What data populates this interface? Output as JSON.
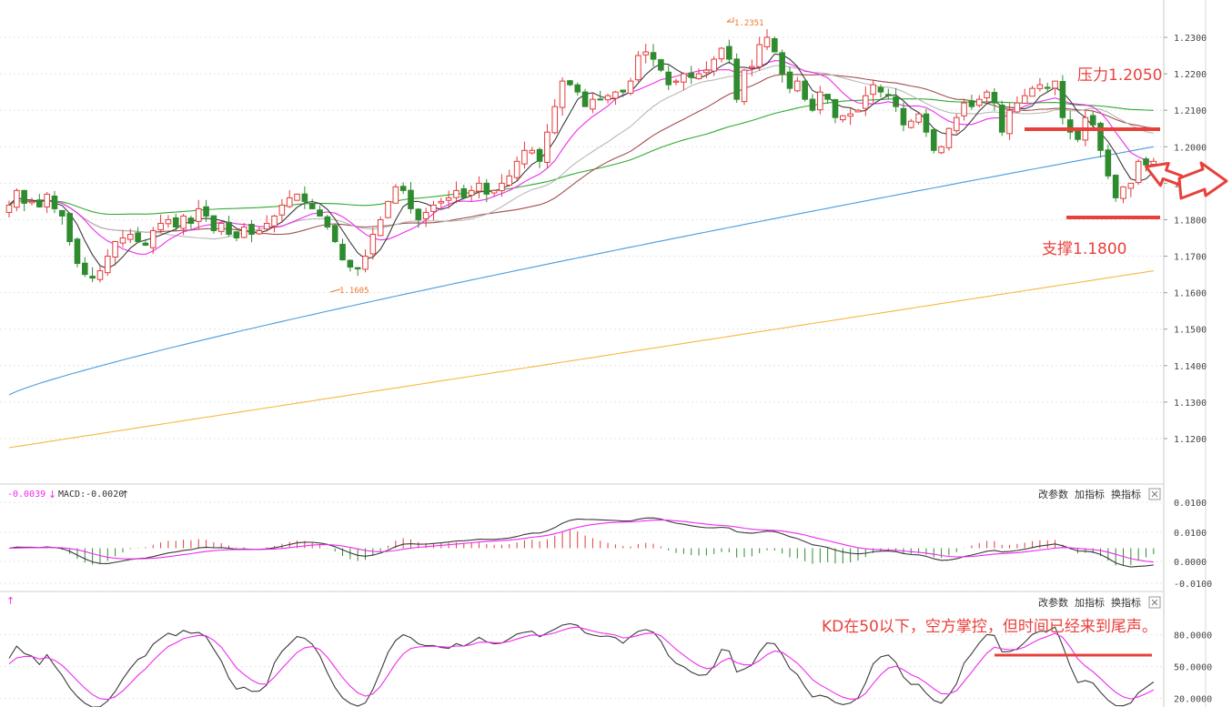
{
  "colors": {
    "up": "#e33b3b",
    "down": "#2e8b2e",
    "ma5": "#3a3a3a",
    "ma10": "#ee2bee",
    "ma20": "#b8b8b8",
    "ma30": "#a24d4d",
    "ma60": "#2faa2f",
    "ma120": "#4a9bdb",
    "ma250": "#f5b942",
    "annotation": "#e8413c",
    "grid": "#e4e4e4"
  },
  "main_panel": {
    "high_label": "1.2351",
    "low_label": "1.1605"
  },
  "annotations": {
    "resistance": "压力1.2050",
    "support": "支撑1.1800",
    "kd_note": "KD在50以下，空方掌控，但时间已经来到尾声。"
  },
  "macd_panel": {
    "dif_text": "-0.0039",
    "macd_text": "MACD:-0.0020",
    "buttons": [
      "改参数",
      "加指标",
      "换指标"
    ],
    "close_icon": "close-icon"
  },
  "kd_panel": {
    "buttons": [
      "改参数",
      "加指标",
      "换指标"
    ],
    "close_icon": "close-icon"
  },
  "chart_data": [
    {
      "type": "candlestick",
      "title": "",
      "ylim": [
        1.1095,
        1.2395
      ],
      "y_ticks": [
        "1.2300",
        "1.2200",
        "1.2100",
        "1.2000",
        "1.1900",
        "1.1800",
        "1.1700",
        "1.1600",
        "1.1500",
        "1.1400",
        "1.1300",
        "1.1200"
      ],
      "y_tick_values": [
        1.23,
        1.22,
        1.21,
        1.2,
        1.19,
        1.18,
        1.17,
        1.16,
        1.15,
        1.14,
        1.13,
        1.12
      ],
      "closes": [
        1.184,
        1.188,
        1.1845,
        1.185,
        1.1835,
        1.187,
        1.183,
        1.181,
        1.174,
        1.168,
        1.165,
        1.164,
        1.166,
        1.17,
        1.174,
        1.175,
        1.176,
        1.174,
        1.173,
        1.177,
        1.179,
        1.18,
        1.178,
        1.181,
        1.179,
        1.183,
        1.181,
        1.177,
        1.179,
        1.176,
        1.175,
        1.178,
        1.176,
        1.177,
        1.179,
        1.181,
        1.184,
        1.186,
        1.187,
        1.185,
        1.183,
        1.181,
        1.178,
        1.174,
        1.169,
        1.167,
        1.1665,
        1.17,
        1.176,
        1.18,
        1.185,
        1.189,
        1.188,
        1.183,
        1.18,
        1.182,
        1.184,
        1.185,
        1.186,
        1.188,
        1.186,
        1.188,
        1.19,
        1.187,
        1.188,
        1.19,
        1.192,
        1.196,
        1.199,
        1.199,
        1.196,
        1.204,
        1.211,
        1.218,
        1.217,
        1.215,
        1.211,
        1.213,
        1.213,
        1.214,
        1.215,
        1.215,
        1.218,
        1.225,
        1.226,
        1.224,
        1.221,
        1.217,
        1.218,
        1.22,
        1.219,
        1.22,
        1.221,
        1.224,
        1.227,
        1.224,
        1.213,
        1.221,
        1.222,
        1.228,
        1.23,
        1.226,
        1.22,
        1.216,
        1.218,
        1.213,
        1.21,
        1.215,
        1.213,
        1.208,
        1.2085,
        1.209,
        1.21,
        1.214,
        1.217,
        1.215,
        1.214,
        1.211,
        1.206,
        1.207,
        1.209,
        1.204,
        1.199,
        1.2,
        1.205,
        1.208,
        1.212,
        1.211,
        1.213,
        1.215,
        1.212,
        1.204,
        1.21,
        1.212,
        1.214,
        1.216,
        1.217,
        1.216,
        1.218,
        1.208,
        1.204,
        1.202,
        1.208,
        1.206,
        1.199,
        1.192,
        1.186,
        1.189,
        1.19,
        1.196,
        1.195,
        1.196
      ],
      "series": [
        {
          "name": "MA5",
          "values": []
        },
        {
          "name": "MA10",
          "values": []
        },
        {
          "name": "MA20",
          "values": []
        },
        {
          "name": "MA30",
          "values": []
        },
        {
          "name": "MA60",
          "values": []
        },
        {
          "name": "MA120",
          "values": []
        },
        {
          "name": "MA250",
          "values": []
        }
      ],
      "hlines": [
        {
          "label": "压力1.2050",
          "value": 1.205
        },
        {
          "label": "支撑1.1800",
          "value": 1.18
        }
      ]
    },
    {
      "type": "bar",
      "title": "",
      "ylim": [
        -0.0125,
        0.0125
      ],
      "y_ticks": [
        "0.0100",
        "0.0100",
        "0.0000",
        "-0.0100"
      ],
      "series": [
        {
          "name": "MACD",
          "values": []
        },
        {
          "name": "DIF",
          "values": []
        },
        {
          "name": "DEA",
          "values": []
        }
      ]
    },
    {
      "type": "line",
      "title": "",
      "ylim": [
        12,
        102
      ],
      "y_ticks": [
        "80.0000",
        "50.0000",
        "20.0000"
      ],
      "y_tick_values": [
        80,
        50,
        20
      ],
      "series": [
        {
          "name": "K",
          "values": []
        },
        {
          "name": "D",
          "values": []
        }
      ],
      "hlines": [
        {
          "label": "",
          "value": 50
        }
      ]
    }
  ]
}
